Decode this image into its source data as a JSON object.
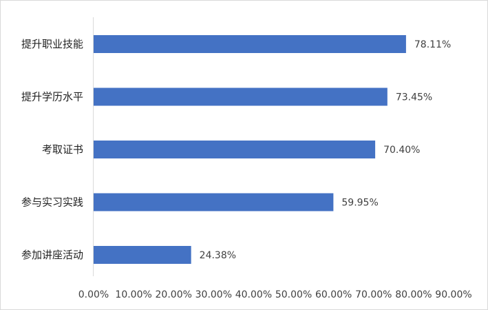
{
  "chart_data": {
    "type": "bar",
    "orientation": "horizontal",
    "title": "",
    "xlabel": "",
    "ylabel": "",
    "categories": [
      "提升职业技能",
      "提升学历水平",
      "考取证书",
      "参与实习实践",
      "参加讲座活动"
    ],
    "values": [
      78.11,
      73.45,
      70.4,
      59.95,
      24.38
    ],
    "data_labels": [
      "78.11%",
      "73.45%",
      "70.40%",
      "59.95%",
      "24.38%"
    ],
    "x_ticks": [
      "0.00%",
      "10.00%",
      "20.00%",
      "30.00%",
      "40.00%",
      "50.00%",
      "60.00%",
      "70.00%",
      "80.00%",
      "90.00%"
    ],
    "xlim": [
      0,
      90
    ],
    "grid": false,
    "bar_color": "#4472c4",
    "axis_color": "#d9d9d9"
  }
}
